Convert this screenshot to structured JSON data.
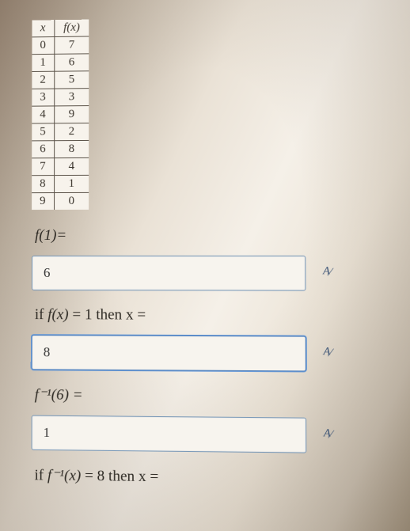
{
  "table": {
    "header_x": "x",
    "header_fx": "f(x)",
    "rows": [
      {
        "x": "0",
        "fx": "7"
      },
      {
        "x": "1",
        "fx": "6"
      },
      {
        "x": "2",
        "fx": "5"
      },
      {
        "x": "3",
        "fx": "3"
      },
      {
        "x": "4",
        "fx": "9"
      },
      {
        "x": "5",
        "fx": "2"
      },
      {
        "x": "6",
        "fx": "8"
      },
      {
        "x": "7",
        "fx": "4"
      },
      {
        "x": "8",
        "fx": "1"
      },
      {
        "x": "9",
        "fx": "0"
      }
    ]
  },
  "q1": {
    "prompt": "f(1)=",
    "answer": "6"
  },
  "q2": {
    "prompt_pre": "if ",
    "prompt_fx": "f(x)",
    "prompt_post": " = 1 then x =",
    "answer": "8"
  },
  "q3": {
    "prompt": "f⁻¹(6) =",
    "answer": "1"
  },
  "q4": {
    "prompt_pre": "if ",
    "prompt_fx": "f⁻¹(x)",
    "prompt_post": " = 8 then x ="
  },
  "colors": {
    "border": "#5a5248",
    "input_border": "#7a99b8",
    "input_focus": "#4a7bb8",
    "text": "#2e2a24"
  }
}
